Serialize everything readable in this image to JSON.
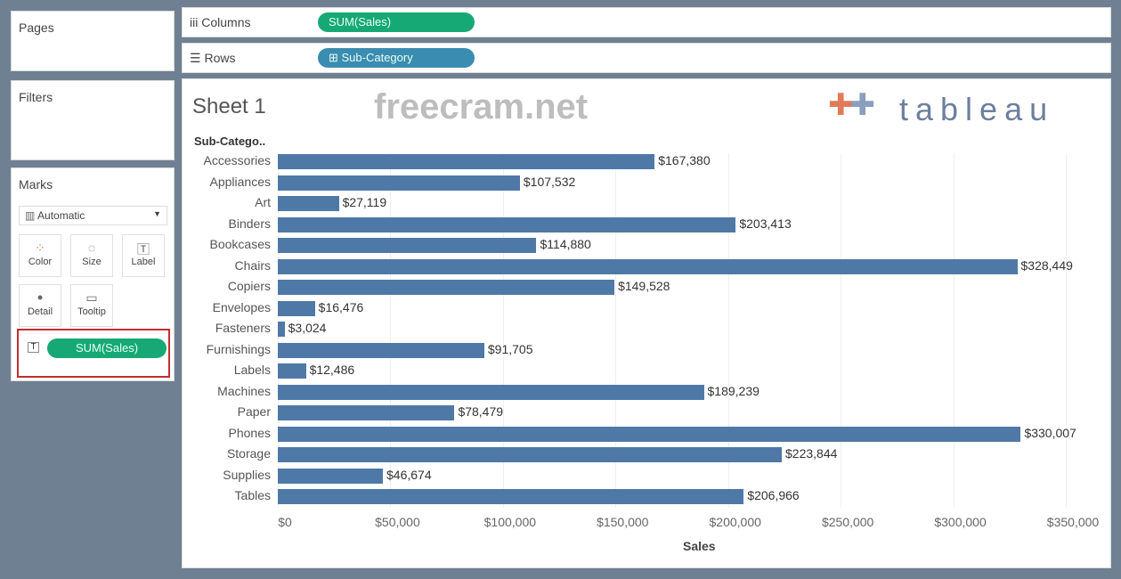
{
  "pages": {
    "title": "Pages"
  },
  "filters": {
    "title": "Filters"
  },
  "marks": {
    "title": "Marks",
    "type": "Automatic",
    "cards": [
      "Color",
      "Size",
      "Label",
      "Detail",
      "Tooltip"
    ],
    "label_pill": "SUM(Sales)"
  },
  "columns": {
    "label": "Columns",
    "pill": "SUM(Sales)"
  },
  "rows": {
    "label": "Rows",
    "pill": "Sub-Category"
  },
  "sheet": {
    "title": "Sheet 1"
  },
  "watermark": "freecram.net",
  "logo": "tableau",
  "chart_data": {
    "type": "bar",
    "orientation": "horizontal",
    "row_header": "Sub-Catego..",
    "xlabel": "Sales",
    "categories": [
      "Accessories",
      "Appliances",
      "Art",
      "Binders",
      "Bookcases",
      "Chairs",
      "Copiers",
      "Envelopes",
      "Fasteners",
      "Furnishings",
      "Labels",
      "Machines",
      "Paper",
      "Phones",
      "Storage",
      "Supplies",
      "Tables"
    ],
    "values": [
      167380,
      107532,
      27119,
      203413,
      114880,
      328449,
      149528,
      16476,
      3024,
      91705,
      12486,
      189239,
      78479,
      330007,
      223844,
      46674,
      206966
    ],
    "labels": [
      "$167,380",
      "$107,532",
      "$27,119",
      "$203,413",
      "$114,880",
      "$328,449",
      "$149,528",
      "$16,476",
      "$3,024",
      "$91,705",
      "$12,486",
      "$189,239",
      "$78,479",
      "$330,007",
      "$223,844",
      "$46,674",
      "$206,966"
    ],
    "xticks": [
      0,
      50000,
      100000,
      150000,
      200000,
      250000,
      300000,
      350000
    ],
    "xtick_labels": [
      "$0",
      "$50,000",
      "$100,000",
      "$150,000",
      "$200,000",
      "$250,000",
      "$300,000",
      "$350,000"
    ],
    "xlim": [
      0,
      365000
    ],
    "color": "#4e79a7"
  }
}
